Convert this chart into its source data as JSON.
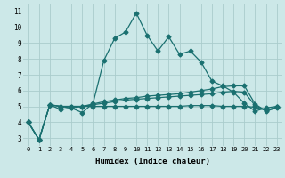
{
  "xlabel": "Humidex (Indice chaleur)",
  "bg_color": "#cce8e8",
  "grid_color": "#aacccc",
  "line_color": "#1a7070",
  "xlim": [
    -0.5,
    23.5
  ],
  "ylim": [
    2.5,
    11.5
  ],
  "xticks": [
    0,
    1,
    2,
    3,
    4,
    5,
    6,
    7,
    8,
    9,
    10,
    11,
    12,
    13,
    14,
    15,
    16,
    17,
    18,
    19,
    20,
    21,
    22,
    23
  ],
  "yticks": [
    3,
    4,
    5,
    6,
    7,
    8,
    9,
    10,
    11
  ],
  "line1": [
    4.0,
    2.9,
    5.1,
    4.8,
    4.9,
    4.6,
    5.2,
    7.9,
    9.3,
    9.7,
    10.9,
    9.5,
    8.5,
    9.4,
    8.3,
    8.5,
    7.8,
    6.6,
    6.3,
    5.9,
    5.2,
    4.7,
    4.9,
    5.0
  ],
  "line2": [
    4.0,
    2.9,
    5.1,
    5.0,
    4.9,
    5.0,
    5.15,
    5.3,
    5.4,
    5.5,
    5.55,
    5.65,
    5.7,
    5.75,
    5.8,
    5.9,
    6.0,
    6.1,
    6.25,
    6.3,
    6.3,
    5.15,
    4.7,
    4.9
  ],
  "line3": [
    4.0,
    2.9,
    5.1,
    5.0,
    5.0,
    5.0,
    5.1,
    5.2,
    5.3,
    5.4,
    5.45,
    5.5,
    5.55,
    5.6,
    5.65,
    5.7,
    5.75,
    5.8,
    5.9,
    5.95,
    5.9,
    5.05,
    4.75,
    4.95
  ],
  "line4": [
    4.0,
    2.9,
    5.1,
    5.0,
    5.0,
    5.0,
    5.0,
    5.0,
    5.0,
    5.0,
    5.0,
    5.0,
    5.0,
    5.0,
    5.0,
    5.05,
    5.05,
    5.05,
    5.0,
    5.0,
    5.0,
    4.95,
    4.75,
    4.95
  ]
}
